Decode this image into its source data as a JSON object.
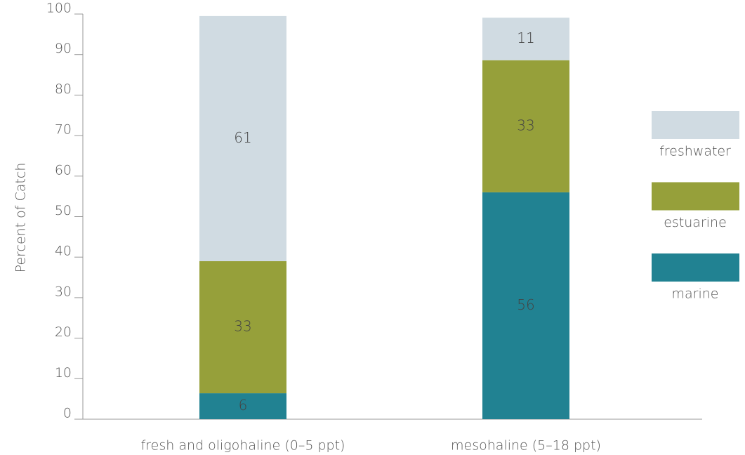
{
  "chart_data": {
    "type": "stacked_bar",
    "y_label": "Percent of Catch",
    "categories": [
      "fresh and oligohaline (0–5 ppt)",
      "mesohaline (5–18 ppt)"
    ],
    "series": [
      {
        "name": "marine",
        "color": "#218292",
        "values": [
          6.4,
          56.0
        ],
        "value_labels": [
          "6",
          "56"
        ]
      },
      {
        "name": "estuarine",
        "color": "#96a03a",
        "values": [
          32.6,
          32.6
        ],
        "value_labels": [
          "33",
          "33"
        ]
      },
      {
        "name": "freshwater",
        "color": "#d0dbe2",
        "values": [
          60.5,
          10.5
        ],
        "value_labels": [
          "61",
          "11"
        ]
      }
    ],
    "ylim": [
      0,
      100
    ],
    "yticks": [
      0,
      10,
      20,
      30,
      40,
      50,
      60,
      70,
      80,
      90,
      100
    ],
    "legend": "right"
  }
}
